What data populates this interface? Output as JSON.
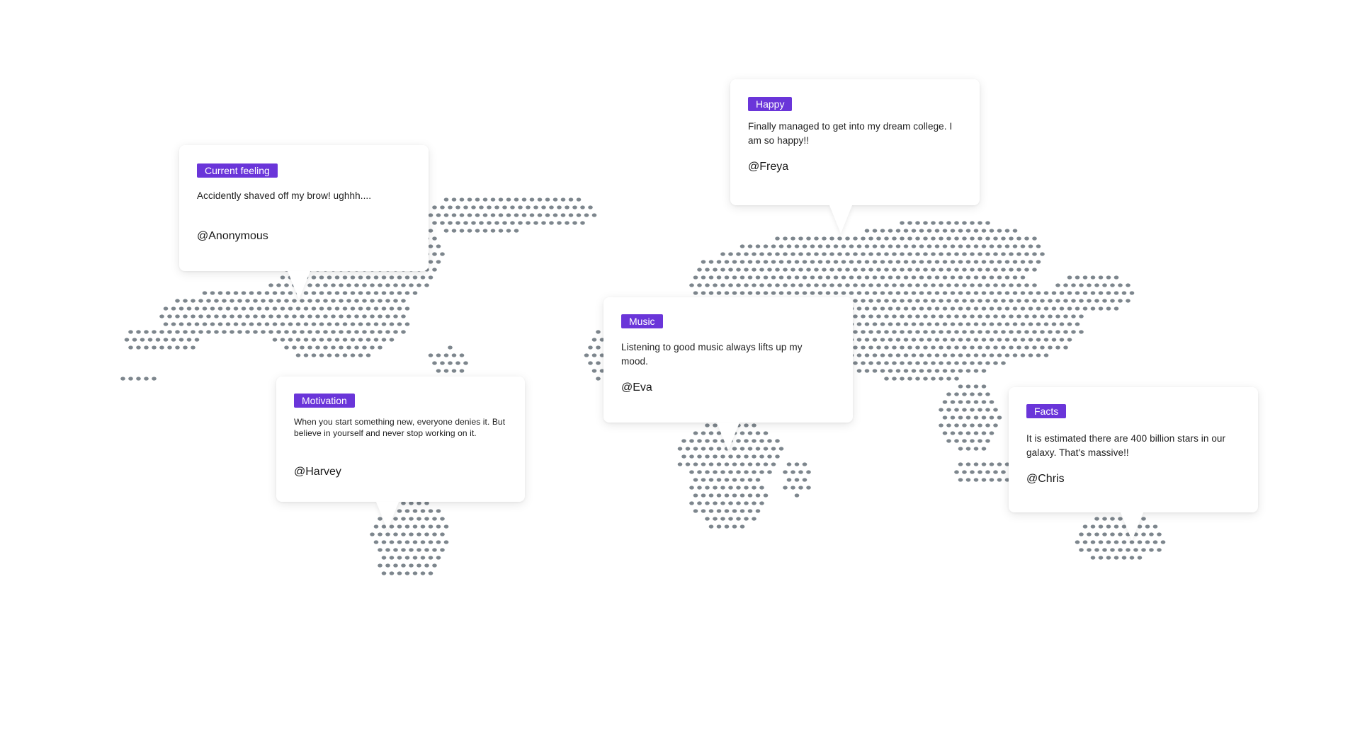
{
  "posts": [
    {
      "tag": "Current feeling",
      "message": "Accidently shaved off my brow! ughhh....",
      "handle": "@Anonymous"
    },
    {
      "tag": "Happy",
      "message": "Finally managed to get into my dream college. I am so happy!!",
      "handle": "@Freya"
    },
    {
      "tag": "Music",
      "message": "Listening to good music always lifts up my mood.",
      "handle": "@Eva"
    },
    {
      "tag": "Motivation",
      "message": "When you start something new, everyone denies it. But believe in yourself and never stop working on it.",
      "handle": "@Harvey"
    },
    {
      "tag": "Facts",
      "message": "It is estimated there are 400 billion stars in our galaxy. That's massive!!",
      "handle": "@Chris"
    }
  ],
  "colors": {
    "accent": "#6a35d9",
    "map_dots": "#7d868d",
    "background": "#ffffff"
  }
}
